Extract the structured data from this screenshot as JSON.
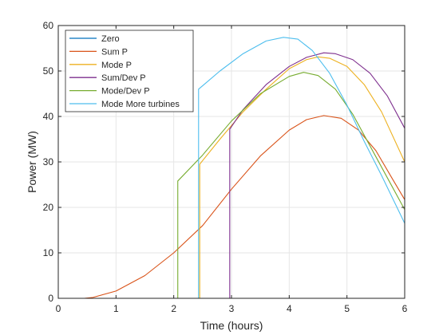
{
  "chart_data": {
    "type": "line",
    "title": "",
    "xlabel": "Time (hours)",
    "ylabel": "Power (MW)",
    "xlim": [
      0,
      6
    ],
    "ylim": [
      0,
      60
    ],
    "xticks": [
      0,
      1,
      2,
      3,
      4,
      5,
      6
    ],
    "yticks": [
      0,
      10,
      20,
      30,
      40,
      50,
      60
    ],
    "grid": true,
    "legend_position": "top-left",
    "series": [
      {
        "name": "Zero",
        "color": "#0072BD",
        "points": [
          [
            0,
            0
          ],
          [
            6,
            0
          ]
        ]
      },
      {
        "name": "Sum P",
        "color": "#D95319",
        "points": [
          [
            0,
            0
          ],
          [
            0.45,
            0
          ],
          [
            0.6,
            0.2
          ],
          [
            1.0,
            1.6
          ],
          [
            1.5,
            5.0
          ],
          [
            2.0,
            10.0
          ],
          [
            2.5,
            16.0
          ],
          [
            3.0,
            24.0
          ],
          [
            3.5,
            31.3
          ],
          [
            4.0,
            37.0
          ],
          [
            4.3,
            39.3
          ],
          [
            4.6,
            40.2
          ],
          [
            4.9,
            39.6
          ],
          [
            5.2,
            37.0
          ],
          [
            5.5,
            32.5
          ],
          [
            5.8,
            26.0
          ],
          [
            6.0,
            21.7
          ]
        ]
      },
      {
        "name": "Mode P",
        "color": "#EDB120",
        "points": [
          [
            0,
            0
          ],
          [
            2.45,
            0
          ],
          [
            2.45,
            29.5
          ],
          [
            2.8,
            35.0
          ],
          [
            3.2,
            41.0
          ],
          [
            3.6,
            46.0
          ],
          [
            4.0,
            50.5
          ],
          [
            4.3,
            52.5
          ],
          [
            4.5,
            53.1
          ],
          [
            4.7,
            52.8
          ],
          [
            5.0,
            51.0
          ],
          [
            5.3,
            47.0
          ],
          [
            5.6,
            41.0
          ],
          [
            6.0,
            30.0
          ]
        ]
      },
      {
        "name": "Sum/Dev P",
        "color": "#7E2F8E",
        "points": [
          [
            0,
            0
          ],
          [
            2.97,
            0
          ],
          [
            2.97,
            37.2
          ],
          [
            3.2,
            41.5
          ],
          [
            3.6,
            47.0
          ],
          [
            4.0,
            51.0
          ],
          [
            4.3,
            53.0
          ],
          [
            4.6,
            54.0
          ],
          [
            4.8,
            53.8
          ],
          [
            5.1,
            52.5
          ],
          [
            5.4,
            49.5
          ],
          [
            5.7,
            44.5
          ],
          [
            6.0,
            37.4
          ]
        ]
      },
      {
        "name": "Mode/Dev P",
        "color": "#77AC30",
        "points": [
          [
            0,
            0
          ],
          [
            2.07,
            0
          ],
          [
            2.07,
            25.8
          ],
          [
            2.5,
            31.5
          ],
          [
            3.0,
            39.0
          ],
          [
            3.5,
            45.0
          ],
          [
            4.0,
            48.8
          ],
          [
            4.25,
            49.7
          ],
          [
            4.5,
            49.0
          ],
          [
            4.8,
            46.0
          ],
          [
            5.1,
            40.5
          ],
          [
            5.4,
            33.5
          ],
          [
            5.7,
            26.5
          ],
          [
            6.0,
            19.5
          ]
        ]
      },
      {
        "name": "Mode More turbines",
        "color": "#4DBEEE",
        "points": [
          [
            0,
            0
          ],
          [
            2.43,
            0
          ],
          [
            2.43,
            46.0
          ],
          [
            2.8,
            50.0
          ],
          [
            3.2,
            53.8
          ],
          [
            3.6,
            56.6
          ],
          [
            3.9,
            57.4
          ],
          [
            4.15,
            57.0
          ],
          [
            4.4,
            54.5
          ],
          [
            4.7,
            49.5
          ],
          [
            5.0,
            42.5
          ],
          [
            5.3,
            34.5
          ],
          [
            5.6,
            27.0
          ],
          [
            6.0,
            16.5
          ]
        ]
      }
    ]
  }
}
